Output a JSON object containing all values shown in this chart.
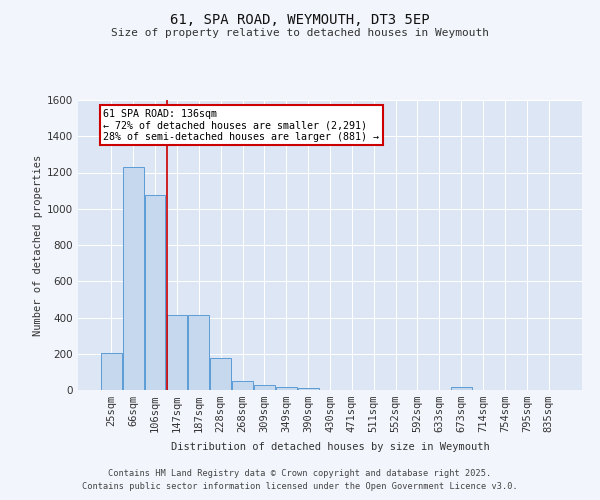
{
  "title": "61, SPA ROAD, WEYMOUTH, DT3 5EP",
  "subtitle": "Size of property relative to detached houses in Weymouth",
  "xlabel": "Distribution of detached houses by size in Weymouth",
  "ylabel": "Number of detached properties",
  "categories": [
    "25sqm",
    "66sqm",
    "106sqm",
    "147sqm",
    "187sqm",
    "228sqm",
    "268sqm",
    "309sqm",
    "349sqm",
    "390sqm",
    "430sqm",
    "471sqm",
    "511sqm",
    "552sqm",
    "592sqm",
    "633sqm",
    "673sqm",
    "714sqm",
    "754sqm",
    "795sqm",
    "835sqm"
  ],
  "values": [
    205,
    1230,
    1075,
    415,
    415,
    175,
    50,
    30,
    15,
    10,
    0,
    0,
    0,
    0,
    0,
    0,
    15,
    0,
    0,
    0,
    0
  ],
  "bar_color": "#c5d8ed",
  "bar_edge_color": "#5b9bd5",
  "figure_bg": "#f2f5fb",
  "plot_bg": "#dce6f4",
  "grid_color": "#ffffff",
  "vline_x": 2.55,
  "vline_color": "#cc0000",
  "annotation_text": "61 SPA ROAD: 136sqm\n← 72% of detached houses are smaller (2,291)\n28% of semi-detached houses are larger (881) →",
  "annotation_box_color": "#ffffff",
  "annotation_box_edge": "#cc0000",
  "ylim": [
    0,
    1600
  ],
  "yticks": [
    0,
    200,
    400,
    600,
    800,
    1000,
    1200,
    1400,
    1600
  ],
  "footer_line1": "Contains HM Land Registry data © Crown copyright and database right 2025.",
  "footer_line2": "Contains public sector information licensed under the Open Government Licence v3.0."
}
